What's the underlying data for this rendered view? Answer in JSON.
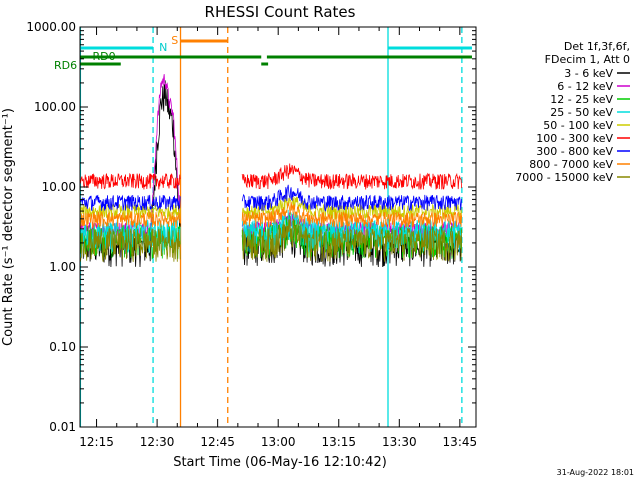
{
  "chart_data": {
    "type": "line",
    "title": "RHESSI Count Rates",
    "xlabel": "Start Time (06-May-16 12:10:42)",
    "ylabel": "Count Rate (s⁻¹ detector segment⁻¹)",
    "y_scale": "log",
    "ylim": [
      0.01,
      1000
    ],
    "xlim_minutes": [
      11.5,
      49.0
    ],
    "x_ticks": [
      {
        "minute": 15,
        "label": "12:15"
      },
      {
        "minute": 30,
        "label": "12:30"
      },
      {
        "minute": 45,
        "label": "12:45"
      },
      {
        "minute": 60,
        "label": "13:00"
      },
      {
        "minute": 75,
        "label": "13:15"
      },
      {
        "minute": 90,
        "label": "13:30"
      },
      {
        "minute": 105,
        "label": "13:45"
      }
    ],
    "y_ticks": [
      {
        "value": 1000,
        "label": "1000.00"
      },
      {
        "value": 100,
        "label": "100.00"
      },
      {
        "value": 10,
        "label": "10.00"
      },
      {
        "value": 1,
        "label": "1.00"
      },
      {
        "value": 0.1,
        "label": "0.10"
      },
      {
        "value": 0.01,
        "label": "0.01"
      }
    ],
    "legend_header": [
      "Det 1f,3f,6f,",
      "FDecim 1, Att 0"
    ],
    "legend_position": "right",
    "data_gap_minutes": [
      35.5,
      51.0
    ],
    "series": [
      {
        "name": "3 - 6 keV",
        "color": "#000000",
        "level": 1.8,
        "x": [
          12,
          28.5,
          30,
          31,
          32,
          33,
          34,
          36
        ],
        "y": [
          2.0,
          2.2,
          35,
          120,
          150,
          90,
          60,
          1.5
        ]
      },
      {
        "name": "6 - 12 keV",
        "color": "#cc00cc",
        "level": 3.0,
        "x": [
          12,
          28.5,
          30,
          31,
          32,
          33,
          34,
          36
        ],
        "y": [
          3.0,
          3.2,
          60,
          200,
          230,
          120,
          80,
          3.0
        ]
      },
      {
        "name": "12 - 25 keV",
        "color": "#00cc00",
        "level": 2.3
      },
      {
        "name": "25 - 50 keV",
        "color": "#00dddd",
        "level": 2.7
      },
      {
        "name": "50 - 100 keV",
        "color": "#cccc00",
        "level": 5.0
      },
      {
        "name": "100 - 300 keV",
        "color": "#ff0000",
        "level": 12.0
      },
      {
        "name": "300 - 800 keV",
        "color": "#0000ff",
        "level": 6.5
      },
      {
        "name": "800 - 7000 keV",
        "color": "#ff8000",
        "level": 4.0
      },
      {
        "name": "7000 - 15000 keV",
        "color": "#888800",
        "level": 2.1
      }
    ],
    "annotations": [
      {
        "label": "RD0",
        "color": "#008000"
      },
      {
        "label": "RD6",
        "color": "#008000"
      },
      {
        "label": "N",
        "color": "#00cccc"
      },
      {
        "label": "S",
        "color": "#ff8000"
      }
    ]
  },
  "footer": {
    "date_stamp": "31-Aug-2022 18:01"
  }
}
